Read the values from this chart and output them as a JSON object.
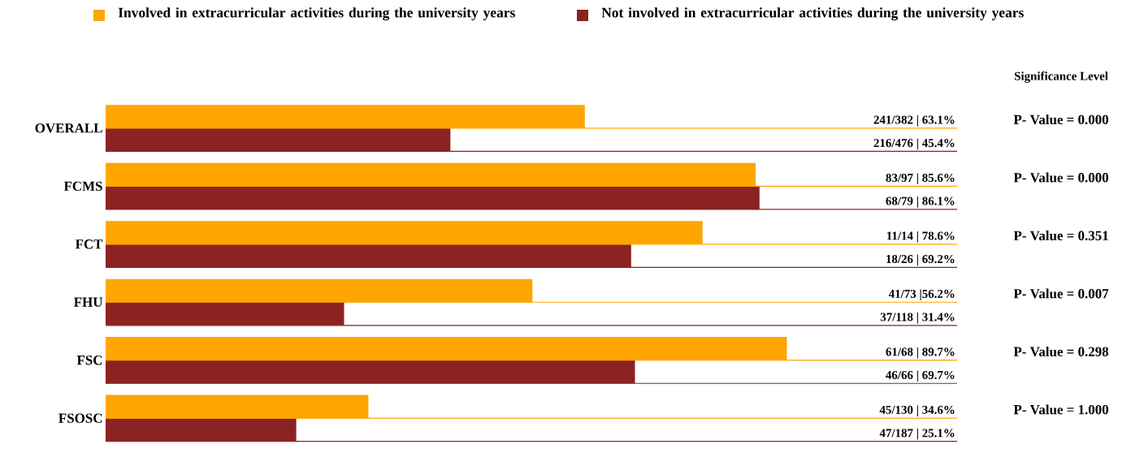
{
  "chart_data": {
    "type": "bar",
    "orientation": "horizontal",
    "categories": [
      "OVERALL",
      "FCMS",
      "FCT",
      "FHU",
      "FSC",
      "FSOSC"
    ],
    "series": [
      {
        "name": "Involved in extracurricular activities during the university years",
        "color": "#ffa500",
        "values": [
          63.1,
          85.6,
          78.6,
          56.2,
          89.7,
          34.6
        ],
        "value_labels": [
          "241/382 | 63.1%",
          "83/97 | 85.6%",
          "11/14 | 78.6%",
          "41/73 |56.2%",
          "61/68 | 89.7%",
          "45/130 | 34.6%"
        ]
      },
      {
        "name": "Not involved in extracurricular activities during the university years",
        "color": "#8b2323",
        "values": [
          45.4,
          86.1,
          69.2,
          31.4,
          69.7,
          25.1
        ],
        "value_labels": [
          "216/476 | 45.4%",
          "68/79 | 86.1%",
          "18/26 | 69.2%",
          "37/118 | 31.4%",
          "46/66 | 69.7%",
          "47/187 | 25.1%"
        ]
      }
    ],
    "annotations": [
      "Significance Level",
      "P- Value = 0.000",
      "P- Value = 0.000",
      "P- Value = 0.351",
      "P- Value = 0.007",
      "P- Value = 0.298",
      "P- Value = 1.000"
    ],
    "legend": "top",
    "grid": "y"
  }
}
